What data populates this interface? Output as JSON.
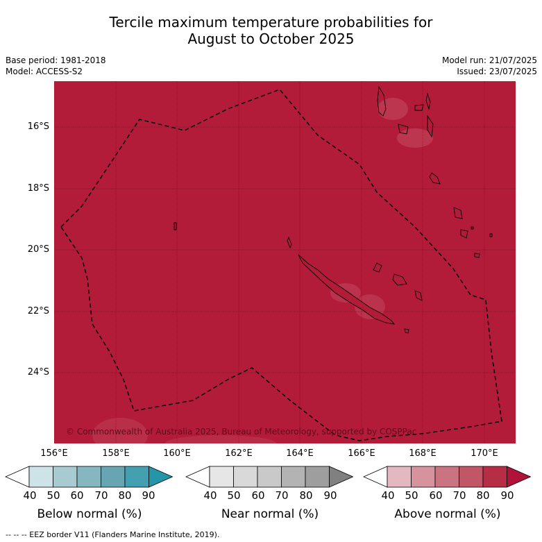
{
  "title_line1": "Tercile maximum temperature probabilities for",
  "title_line2": "August to October 2025",
  "base_period": "Base period: 1981-2018",
  "model": "Model: ACCESS-S2",
  "model_run": "Model run: 21/07/2025",
  "issued": "Issued: 23/07/2025",
  "map": {
    "fill_color": "#b31c38",
    "latitude_labels": [
      "16°S",
      "18°S",
      "20°S",
      "22°S",
      "24°S"
    ],
    "longitude_labels": [
      "156°E",
      "158°E",
      "160°E",
      "162°E",
      "164°E",
      "166°E",
      "168°E",
      "170°E"
    ],
    "copyright": "© Commonwealth of Australia 2025, Bureau of Meteorology, supported by COSPPac"
  },
  "colorbars": [
    {
      "label": "Below normal (%)",
      "ticks": [
        "40",
        "50",
        "60",
        "70",
        "80",
        "90"
      ],
      "colors": [
        "#ffffff",
        "#cde3e8",
        "#a8cbd2",
        "#86b7c1",
        "#67a5b2",
        "#43a0b1",
        "#2596a8"
      ]
    },
    {
      "label": "Near normal (%)",
      "ticks": [
        "40",
        "50",
        "60",
        "70",
        "80",
        "90"
      ],
      "colors": [
        "#ffffff",
        "#e6e6e6",
        "#d9d9d9",
        "#c9c9c9",
        "#b3b3b3",
        "#9e9e9e",
        "#808080"
      ]
    },
    {
      "label": "Above normal (%)",
      "ticks": [
        "40",
        "50",
        "60",
        "70",
        "80",
        "90"
      ],
      "colors": [
        "#ffffff",
        "#e3b8c0",
        "#d6939e",
        "#c97480",
        "#c05666",
        "#b72d46",
        "#b0123a"
      ]
    }
  ],
  "footnote": "--  --  -- EEZ border V11 (Flanders Marine Institute, 2019)."
}
